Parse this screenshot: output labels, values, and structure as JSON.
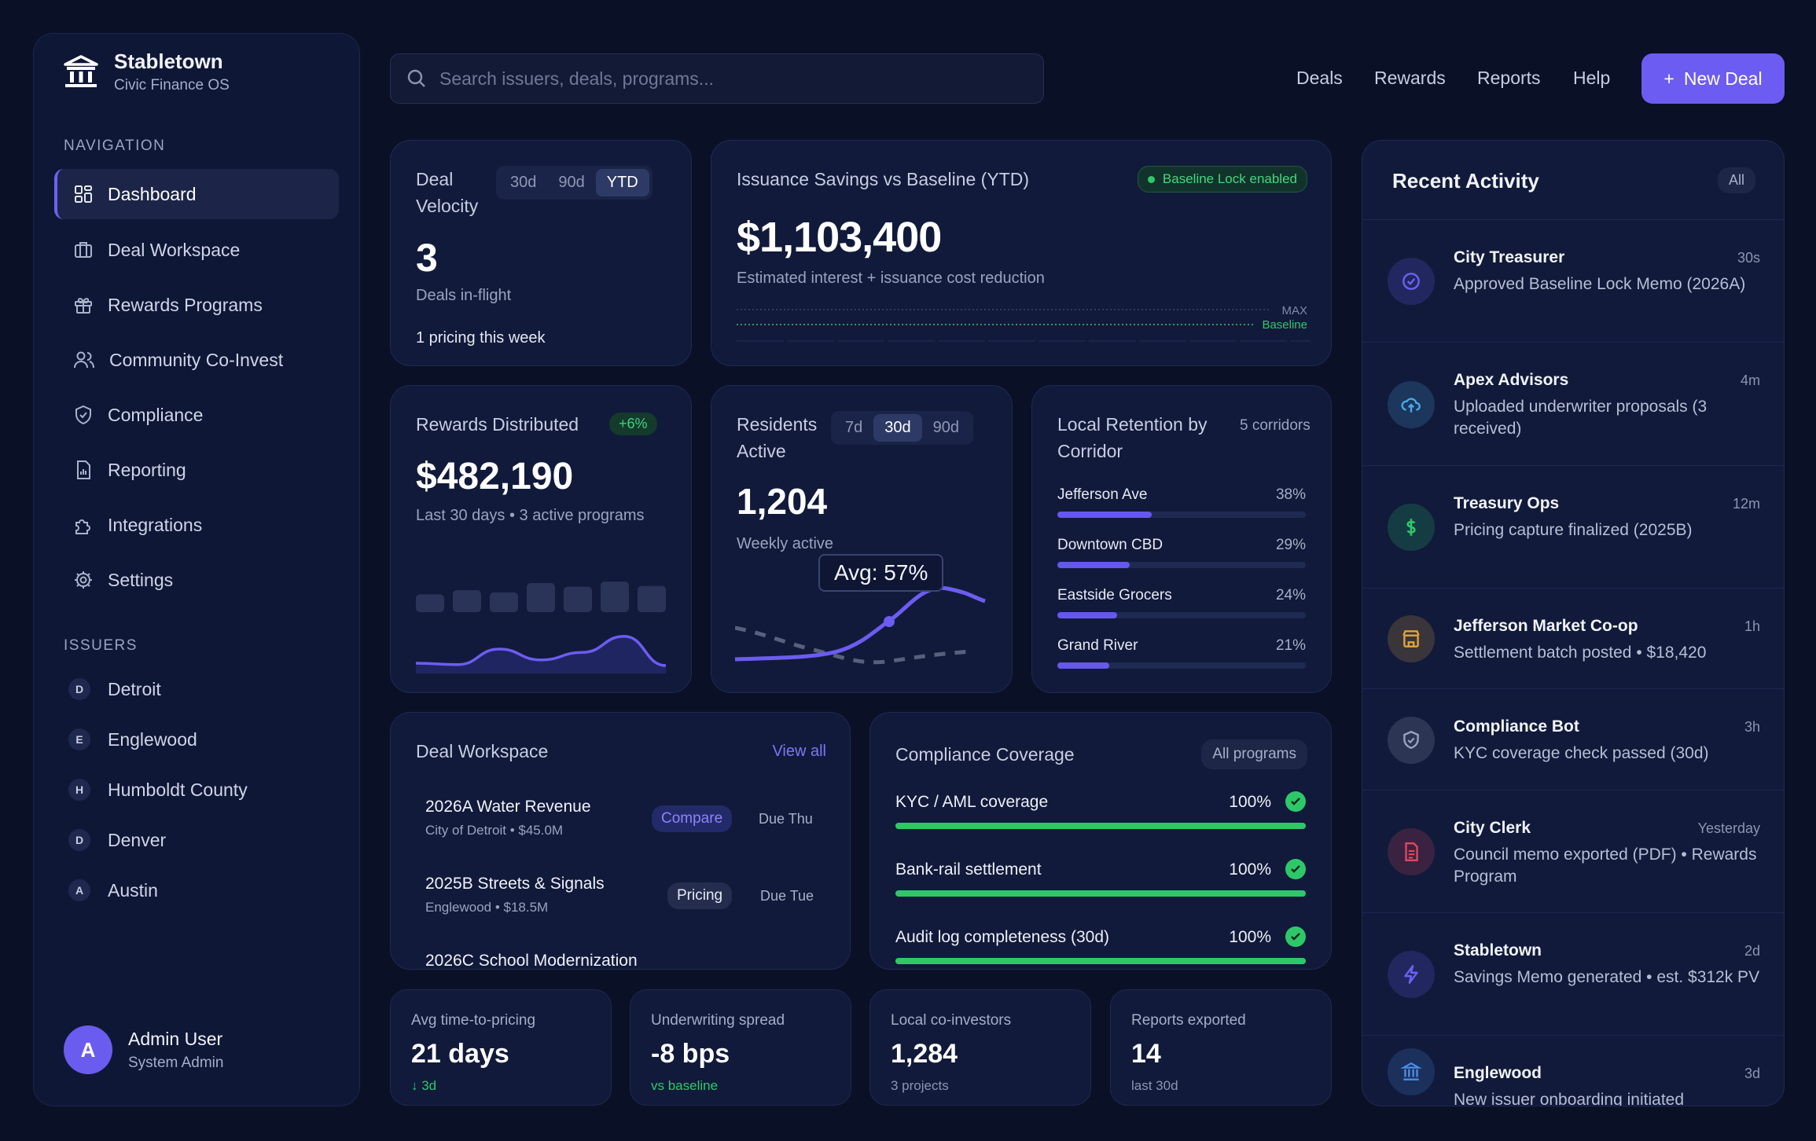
{
  "app": {
    "name": "Stabletown",
    "subtitle": "Civic Finance OS"
  },
  "sidebar": {
    "nav_heading": "NAVIGATION",
    "items": [
      {
        "label": "Dashboard"
      },
      {
        "label": "Deal Workspace"
      },
      {
        "label": "Rewards Programs"
      },
      {
        "label": "Community Co-Invest"
      },
      {
        "label": "Compliance"
      },
      {
        "label": "Reporting"
      },
      {
        "label": "Integrations"
      },
      {
        "label": "Settings"
      }
    ],
    "issuers_heading": "ISSUERS",
    "issuers": [
      {
        "initial": "D",
        "name": "Detroit"
      },
      {
        "initial": "E",
        "name": "Englewood"
      },
      {
        "initial": "H",
        "name": "Humboldt County"
      },
      {
        "initial": "D",
        "name": "Denver"
      },
      {
        "initial": "A",
        "name": "Austin"
      }
    ],
    "user": {
      "initial": "A",
      "name": "Admin User",
      "role": "System Admin"
    }
  },
  "header": {
    "search_placeholder": "Search issuers, deals, programs...",
    "links": [
      "Deals",
      "Rewards",
      "Reports",
      "Help"
    ],
    "new_deal_label": "New Deal",
    "new_deal_icon": "+"
  },
  "deal_velocity": {
    "title": "Deal Velocity",
    "ranges": [
      "30d",
      "90d",
      "YTD"
    ],
    "active_range": "YTD",
    "value": "3",
    "value_label": "Deals in-flight",
    "note": "1 pricing this week"
  },
  "savings": {
    "title": "Issuance Savings vs Baseline (YTD)",
    "badge": "Baseline Lock enabled",
    "value": "$1,103,400",
    "subtitle": "Estimated interest + issuance cost reduction",
    "max_label": "MAX",
    "baseline_label": "Baseline"
  },
  "rewards": {
    "title": "Rewards Distributed",
    "change": "+6%",
    "value": "$482,190",
    "subtitle": "Last 30 days • 3 active programs",
    "bars": [
      0.35,
      0.5,
      0.42,
      0.75,
      0.62,
      0.8,
      0.65
    ],
    "line": [
      0.15,
      0.12,
      0.45,
      0.22,
      0.38,
      0.72,
      0.1
    ]
  },
  "residents": {
    "title": "Residents Active",
    "ranges": [
      "7d",
      "30d",
      "90d"
    ],
    "active_range": "30d",
    "value": "1,204",
    "subtitle": "Weekly active",
    "tooltip": "Avg: 57%"
  },
  "retention": {
    "title": "Local Retention by Corridor",
    "count": "5 corridors",
    "rows": [
      {
        "name": "Jefferson Ave",
        "pct_label": "38%",
        "pct": 38
      },
      {
        "name": "Downtown CBD",
        "pct_label": "29%",
        "pct": 29
      },
      {
        "name": "Eastside Grocers",
        "pct_label": "24%",
        "pct": 24
      },
      {
        "name": "Grand River",
        "pct_label": "21%",
        "pct": 21
      }
    ]
  },
  "workspace": {
    "title": "Deal Workspace",
    "view_all": "View all",
    "deals": [
      {
        "name": "2026A Water Revenue",
        "meta": "City of Detroit • $45.0M",
        "status": "Compare",
        "due": "Due Thu"
      },
      {
        "name": "2025B Streets & Signals",
        "meta": "Englewood • $18.5M",
        "status": "Pricing",
        "due": "Due Tue"
      },
      {
        "name": "2026C School Modernization",
        "meta": "",
        "status": "",
        "due": ""
      }
    ]
  },
  "compliance": {
    "title": "Compliance Coverage",
    "filter": "All programs",
    "rows": [
      {
        "label": "KYC / AML coverage",
        "pct_label": "100%",
        "pct": 100
      },
      {
        "label": "Bank-rail settlement",
        "pct_label": "100%",
        "pct": 100
      },
      {
        "label": "Audit log completeness (30d)",
        "pct_label": "100%",
        "pct": 100
      }
    ]
  },
  "stats": [
    {
      "label": "Avg time-to-pricing",
      "value": "21 days",
      "sub": "↓ 3d"
    },
    {
      "label": "Underwriting spread",
      "value": "-8 bps",
      "sub": "vs baseline"
    },
    {
      "label": "Local co-investors",
      "value": "1,284",
      "sub": "3 projects"
    },
    {
      "label": "Reports exported",
      "value": "14",
      "sub": "last 30d"
    }
  ],
  "activity": {
    "title": "Recent Activity",
    "filter": "All",
    "items": [
      {
        "actor": "City Treasurer",
        "text": "Approved Baseline Lock Memo (2026A)",
        "time": "30s",
        "icon": "check-circle-icon",
        "color": "#6b62f5"
      },
      {
        "actor": "Apex Advisors",
        "text": "Uploaded underwriter proposals (3 received)",
        "time": "4m",
        "icon": "cloud-upload-icon",
        "color": "#4aa8e8"
      },
      {
        "actor": "Treasury Ops",
        "text": "Pricing capture finalized (2025B)",
        "time": "12m",
        "icon": "dollar-icon",
        "color": "#2ec86a"
      },
      {
        "actor": "Jefferson Market Co-op",
        "text": "Settlement batch posted • $18,420",
        "time": "1h",
        "icon": "store-icon",
        "color": "#e2a43a"
      },
      {
        "actor": "Compliance Bot",
        "text": "KYC coverage check passed (30d)",
        "time": "3h",
        "icon": "shield-icon",
        "color": "#9aa3c0"
      },
      {
        "actor": "City Clerk",
        "text": "Council memo exported (PDF) • Rewards Program",
        "time": "Yesterday",
        "icon": "document-icon",
        "color": "#e0485e"
      },
      {
        "actor": "Stabletown",
        "text": "Savings Memo generated • est. $312k PV",
        "time": "2d",
        "icon": "lightning-icon",
        "color": "#6b62f5"
      },
      {
        "actor": "Englewood",
        "text": "New issuer onboarding initiated",
        "time": "3d",
        "icon": "bank-icon",
        "color": "#4a8ee8"
      }
    ]
  }
}
